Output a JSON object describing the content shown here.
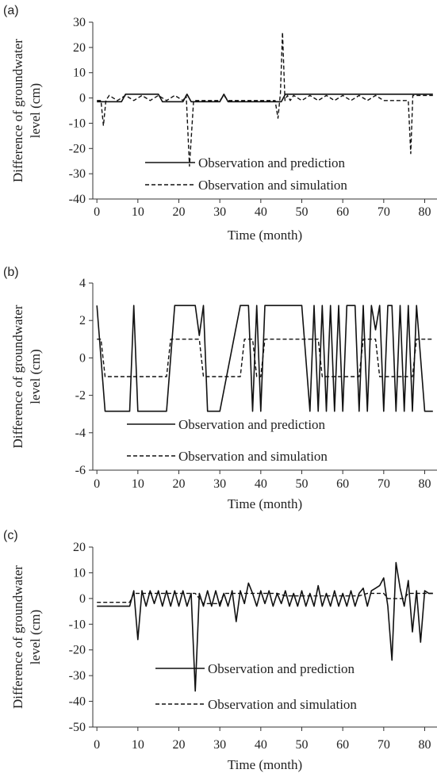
{
  "chart_data": [
    {
      "type": "line",
      "panel": "(a)",
      "xlabel": "Time (month)",
      "ylabel": [
        "Difference of groundwater",
        "level (cm)"
      ],
      "xlim": [
        -1,
        83
      ],
      "ylim": [
        -40,
        30
      ],
      "xticks": [
        0,
        10,
        20,
        30,
        40,
        50,
        60,
        70,
        80
      ],
      "yticks": [
        -40,
        -30,
        -20,
        -10,
        0,
        10,
        20,
        30
      ],
      "legend": "inside-bottom-right",
      "series": [
        {
          "name": "Observation and prediction",
          "style": "solid",
          "x": [
            0,
            6,
            7,
            15,
            16,
            21,
            22,
            23,
            30,
            31,
            32,
            45,
            46,
            82
          ],
          "y": [
            -1.5,
            -1.5,
            1.5,
            1.5,
            -1.5,
            -1.5,
            1.5,
            -1.5,
            -1.5,
            1.5,
            -1.5,
            -1.5,
            1.5,
            1.5
          ]
        },
        {
          "name": "Observation and simulation",
          "style": "dashed",
          "x": [
            0,
            1,
            1.6,
            2.2,
            3,
            5,
            7,
            9,
            11,
            13,
            15,
            17,
            19,
            21,
            21.8,
            22.6,
            23.6,
            25,
            30,
            31,
            32,
            35,
            43.5,
            44.2,
            44.8,
            45.3,
            45.9,
            46.5,
            47.2,
            48,
            50,
            52,
            54,
            56,
            58,
            60,
            62,
            64,
            66,
            68,
            70,
            75,
            76,
            76.6,
            77.1,
            77.8,
            82
          ],
          "y": [
            -1,
            -1,
            -11,
            -1,
            1,
            -1,
            1,
            -1,
            1,
            -1,
            1,
            -1,
            1,
            -1,
            1,
            -27,
            -1,
            -1,
            -1,
            1,
            -1,
            -1,
            -1,
            -8,
            2,
            26,
            -1,
            1,
            -1,
            1,
            -1,
            1,
            -1,
            1,
            -1,
            1,
            -1,
            1,
            -1,
            1,
            -1,
            -1,
            -1,
            -22,
            1,
            1,
            1
          ]
        }
      ]
    },
    {
      "type": "line",
      "panel": "(b)",
      "xlabel": "Time (month)",
      "ylabel": [
        "Difference of groundwater",
        "level (cm)"
      ],
      "xlim": [
        -1,
        83
      ],
      "ylim": [
        -6,
        4
      ],
      "xticks": [
        0,
        10,
        20,
        30,
        40,
        50,
        60,
        70,
        80
      ],
      "yticks": [
        -6,
        -4,
        -2,
        0,
        2,
        4
      ],
      "legend": "inside-bottom",
      "series": [
        {
          "name": "Observation and prediction",
          "style": "solid",
          "x": [
            0,
            2,
            8,
            9,
            10,
            17,
            19,
            24,
            25,
            26,
            27,
            30,
            35,
            37,
            38,
            39,
            40,
            41,
            50,
            52,
            53,
            54,
            55,
            56,
            57,
            58,
            59,
            60,
            61,
            63,
            64,
            65,
            66,
            67,
            68,
            69,
            70,
            71,
            72,
            73,
            74,
            75,
            76,
            77,
            78,
            80,
            82
          ],
          "y": [
            2.8,
            -2.85,
            -2.85,
            2.8,
            -2.85,
            -2.85,
            2.8,
            2.8,
            1.2,
            2.8,
            -2.85,
            -2.85,
            2.8,
            2.8,
            -2.85,
            2.8,
            -2.85,
            2.8,
            2.8,
            -2.85,
            2.8,
            -2.85,
            2.8,
            -2.85,
            2.8,
            -2.85,
            2.8,
            -2.85,
            2.8,
            2.8,
            -2.85,
            2.8,
            -2.85,
            2.8,
            1.5,
            2.8,
            -2.85,
            2.8,
            2.8,
            -2.85,
            2.8,
            -2.85,
            2.8,
            -2.85,
            2.8,
            -2.85,
            -2.85
          ]
        },
        {
          "name": "Observation and simulation",
          "style": "dashed",
          "x": [
            0,
            1,
            2,
            17,
            18,
            25,
            26,
            35,
            36,
            38,
            39,
            40,
            41,
            54,
            55,
            64,
            65,
            68,
            69,
            77,
            78,
            82
          ],
          "y": [
            1,
            1,
            -1,
            -1,
            1,
            1,
            -1,
            -1,
            1,
            1,
            -1,
            -1,
            1,
            1,
            -1,
            -1,
            1,
            1,
            -1,
            -1,
            1,
            1
          ]
        }
      ]
    },
    {
      "type": "line",
      "panel": "(c)",
      "xlabel": "Time (month)",
      "ylabel": [
        "Difference of groundwater",
        "level (cm)"
      ],
      "xlim": [
        -1,
        83
      ],
      "ylim": [
        -50,
        20
      ],
      "xticks": [
        0,
        10,
        20,
        30,
        40,
        50,
        60,
        70,
        80
      ],
      "yticks": [
        -50,
        -40,
        -30,
        -20,
        -10,
        0,
        10,
        20
      ],
      "legend": "inside-bottom-right",
      "series": [
        {
          "name": "Observation and prediction",
          "style": "solid",
          "x": [
            0,
            8,
            9,
            10,
            11,
            12,
            13,
            14,
            15,
            16,
            17,
            18,
            19,
            20,
            21,
            22,
            23,
            24,
            25,
            26,
            27,
            28,
            29,
            30,
            31,
            32,
            33,
            34,
            35,
            36,
            37,
            38,
            39,
            40,
            41,
            42,
            43,
            44,
            45,
            46,
            47,
            48,
            49,
            50,
            51,
            52,
            53,
            54,
            55,
            56,
            57,
            58,
            59,
            60,
            61,
            62,
            63,
            64,
            65,
            66,
            67,
            68,
            69,
            70,
            71,
            72,
            73,
            74,
            75,
            76,
            77,
            78,
            79,
            80,
            81,
            82
          ],
          "y": [
            -3,
            -3,
            3,
            -16,
            3,
            -3,
            3,
            -2,
            3,
            -3,
            3,
            -3,
            3,
            -3,
            3,
            -3,
            2,
            -36,
            2,
            -3,
            3,
            -3,
            3,
            -3,
            2,
            -3,
            3,
            -9,
            3,
            -2,
            6,
            2,
            -3,
            3,
            -2,
            3,
            -3,
            2,
            -2,
            3,
            -3,
            2,
            -3,
            3,
            -3,
            2,
            -3,
            5,
            -3,
            2,
            -3,
            3,
            -3,
            2,
            -3,
            3,
            -3,
            2,
            4,
            -3,
            3,
            4,
            5,
            8,
            -3,
            -24,
            14,
            4,
            -3,
            7,
            -13,
            3,
            -17,
            3,
            2,
            2
          ]
        },
        {
          "name": "Observation and simulation",
          "style": "dashed",
          "x": [
            0,
            8,
            9,
            24,
            26,
            30,
            31,
            44,
            46,
            64,
            66,
            70,
            71,
            75,
            76,
            82
          ],
          "y": [
            -1.5,
            -1.5,
            2,
            2,
            -2,
            -2,
            2,
            2,
            1,
            1,
            2,
            2,
            0,
            0,
            2,
            2
          ]
        }
      ]
    }
  ]
}
